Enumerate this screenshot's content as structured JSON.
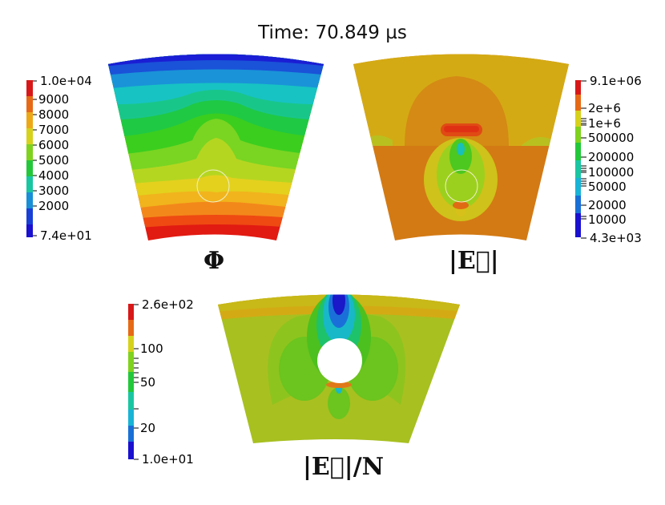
{
  "title": "Time: 70.849 µs",
  "plots": [
    {
      "label": "Φ",
      "colorbar": {
        "scale": "linear",
        "max_label": "1.0e+04",
        "min_label": "7.4e+01",
        "ticks": [
          "9000",
          "8000",
          "7000",
          "6000",
          "5000",
          "4000",
          "3000",
          "2000"
        ]
      }
    },
    {
      "label": "|E⃗|",
      "colorbar": {
        "scale": "log",
        "max_label": "9.1e+06",
        "min_label": "4.3e+03",
        "ticks": [
          "2e+6",
          "1e+6",
          "500000",
          "200000",
          "100000",
          "50000",
          "20000",
          "10000"
        ]
      }
    },
    {
      "label": "|E⃗|/N",
      "colorbar": {
        "scale": "log",
        "max_label": "2.6e+02",
        "min_label": "1.0e+01",
        "ticks": [
          "100",
          "50",
          "20"
        ]
      }
    }
  ],
  "colors": {
    "blue": "#1a10d6",
    "cyan": "#18c8d0",
    "green": "#1fc21f",
    "yellow": "#d8c81c",
    "orange": "#e07818",
    "red": "#d81818",
    "olive": "#a8c020",
    "tan": "#d4aa14",
    "burnt": "#d47a14"
  }
}
